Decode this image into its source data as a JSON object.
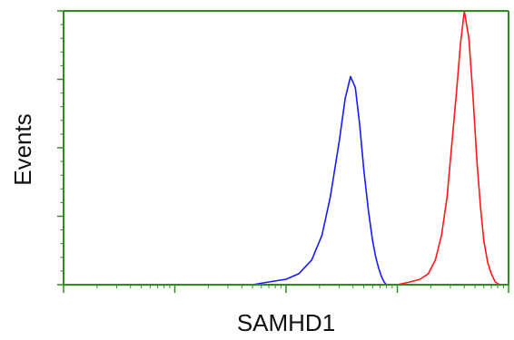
{
  "chart_data": {
    "type": "line",
    "title": "",
    "xlabel": "SAMHD1",
    "ylabel": "Events",
    "x_scale": "log",
    "xlim": [
      1,
      10000
    ],
    "ylim": [
      0,
      100
    ],
    "grid": false,
    "legend": "none",
    "colors": {
      "axis": "#2e8b1e",
      "blue": "#1a1aff",
      "red": "#ff1a1a"
    },
    "series": [
      {
        "color": "#1a1aff",
        "x": [
          50,
          70,
          100,
          130,
          170,
          210,
          250,
          300,
          340,
          380,
          420,
          460,
          500,
          550,
          600,
          640,
          680,
          720,
          760,
          800
        ],
        "y": [
          0,
          1,
          2,
          4,
          9,
          18,
          32,
          52,
          68,
          76,
          72,
          58,
          42,
          27,
          16,
          10,
          6,
          3,
          1,
          0
        ]
      },
      {
        "color": "#ff1a1a",
        "x": [
          1000,
          1300,
          1600,
          1900,
          2200,
          2500,
          2800,
          3100,
          3400,
          3700,
          4000,
          4400,
          4800,
          5200,
          5600,
          6000,
          6500,
          7000,
          7600,
          8300
        ],
        "y": [
          0,
          1,
          2,
          4,
          9,
          18,
          32,
          52,
          70,
          88,
          100,
          90,
          68,
          45,
          28,
          16,
          8,
          4,
          1,
          0
        ]
      }
    ]
  }
}
